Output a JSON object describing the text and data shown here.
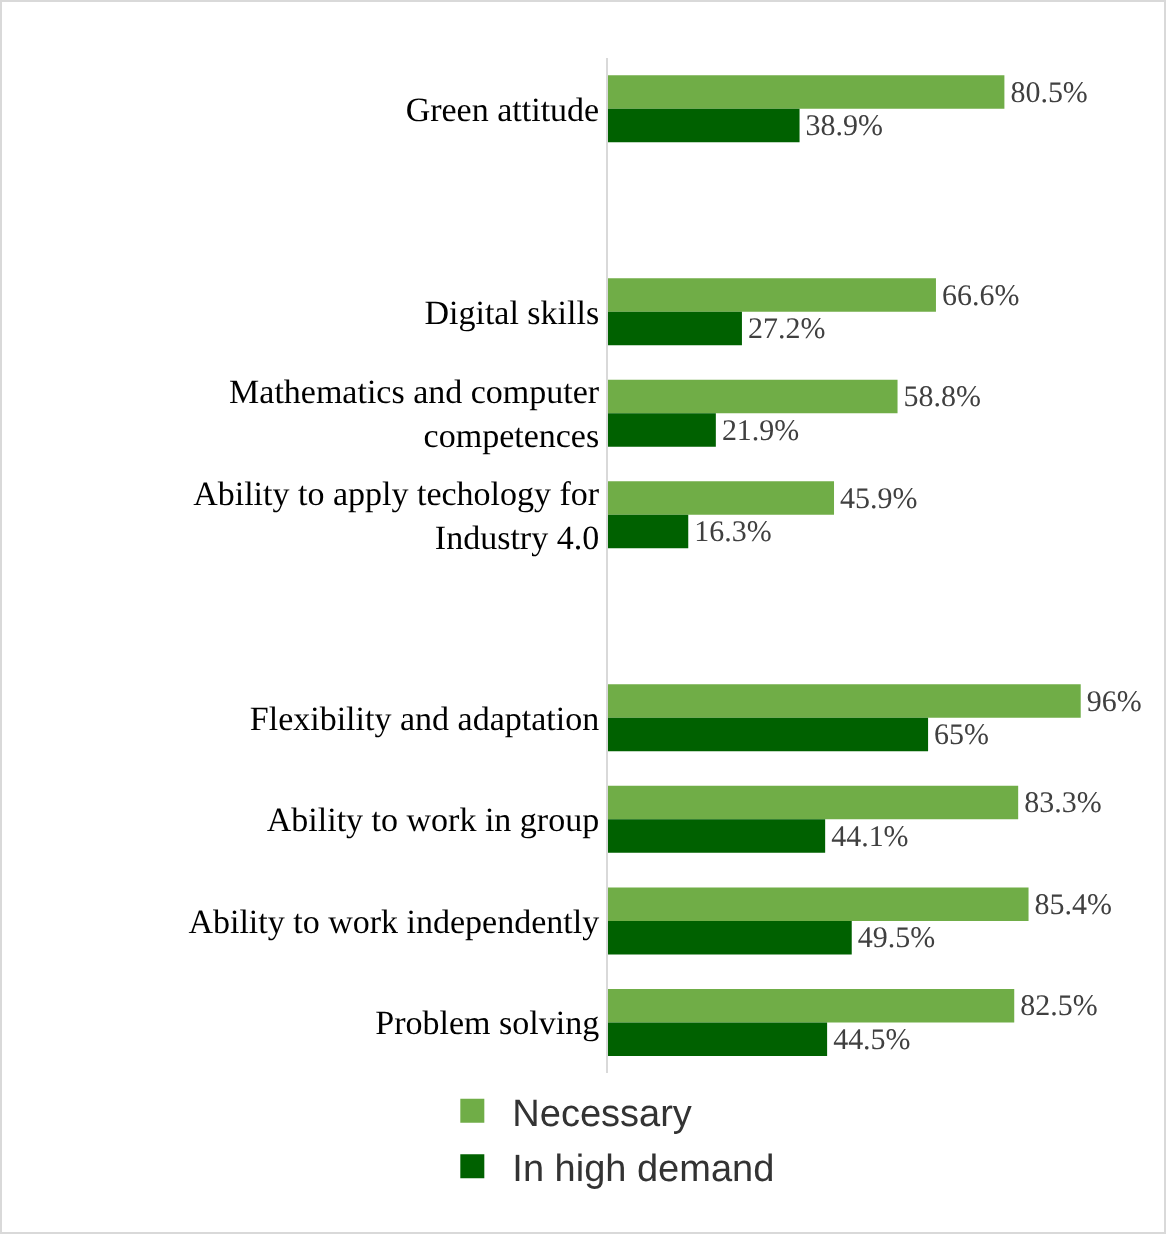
{
  "chart_data": {
    "type": "bar",
    "orientation": "horizontal",
    "categories": [
      "Green attitude",
      null,
      "Digital skills",
      "Mathematics and computer competences",
      "Ability to apply techology for Industry 4.0",
      null,
      "Flexibility and adaptation",
      "Ability to work in group",
      "Ability to work independently",
      "Problem solving"
    ],
    "series": [
      {
        "name": "Necessary",
        "color": "#70ad47",
        "values": [
          80.5,
          null,
          66.6,
          58.8,
          45.9,
          null,
          96,
          83.3,
          85.4,
          82.5
        ],
        "value_labels": [
          "80.5%",
          null,
          "66.6%",
          "58.8%",
          "45.9%",
          null,
          "96%",
          "83.3%",
          "85.4%",
          "82.5%"
        ]
      },
      {
        "name": "In high demand",
        "color": "#006100",
        "values": [
          38.9,
          null,
          27.2,
          21.9,
          16.3,
          null,
          65,
          44.1,
          49.5,
          44.5
        ],
        "value_labels": [
          "38.9%",
          null,
          "27.2%",
          "21.9%",
          "16.3%",
          null,
          "65%",
          "44.1%",
          "49.5%",
          "44.5%"
        ]
      }
    ],
    "legend": "bottom",
    "grid": false
  }
}
